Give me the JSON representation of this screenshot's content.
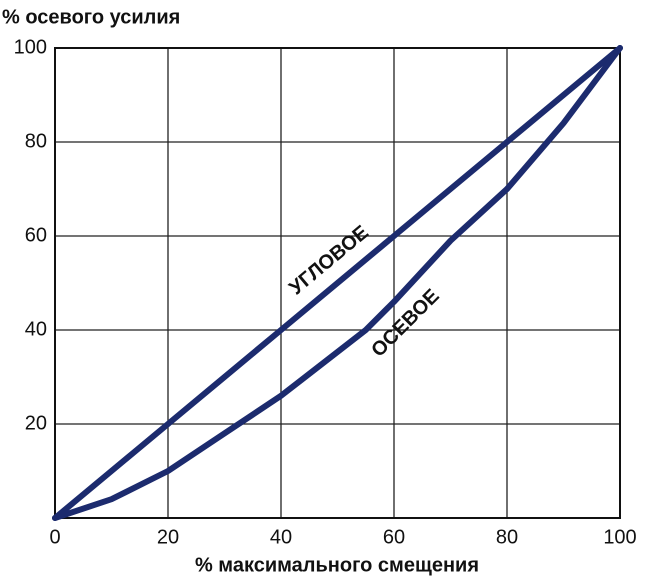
{
  "chart_data": {
    "type": "line",
    "y_label": "% осевого усилия",
    "x_label": "% максимального смещения",
    "xlim": [
      0,
      100
    ],
    "xticks": [
      0,
      20,
      40,
      60,
      80,
      100
    ],
    "ylim": [
      0,
      100
    ],
    "yticks": [
      20,
      40,
      60,
      80,
      100
    ],
    "grid": true,
    "series": [
      {
        "name": "УГЛОВОЕ",
        "color": "#1c2b6e",
        "x": [
          0,
          20,
          40,
          60,
          80,
          100
        ],
        "values": [
          0,
          20,
          40,
          60,
          80,
          100
        ]
      },
      {
        "name": "ОСЕВОЕ",
        "color": "#1c2b6e",
        "x": [
          0,
          10,
          20,
          30,
          40,
          55,
          60,
          70,
          80,
          90,
          100
        ],
        "values": [
          0,
          4,
          10,
          18,
          26,
          40,
          46,
          59,
          70,
          84,
          100
        ]
      }
    ]
  }
}
